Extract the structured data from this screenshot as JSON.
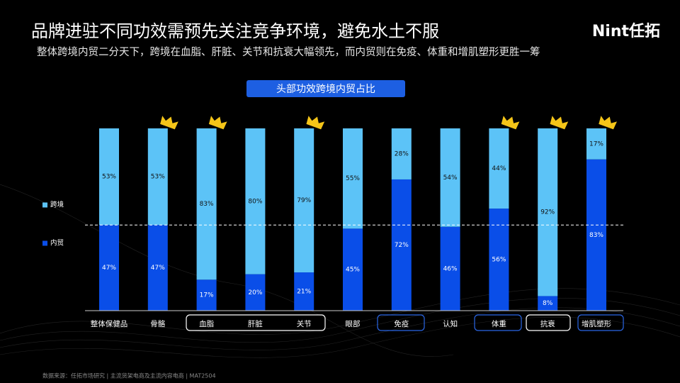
{
  "header": {
    "title": "品牌进驻不同功效需预先关注竞争环境，避免水土不服",
    "subtitle": "整体跨境内贸二分天下，跨境在血脂、肝脏、关节和抗衰大幅领先，而内贸则在免疫、体重和增肌塑形更胜一筹",
    "logo": "Nint任拓"
  },
  "footer": "数据来源：任拓市场研究 | 主流货架电商及主流内容电商 | MAT2504",
  "chart_data": {
    "type": "bar",
    "stacked": true,
    "title": "头部功效跨境内贸占比",
    "categories": [
      "整体保健品",
      "骨骼",
      "血脂",
      "肝脏",
      "关节",
      "眼部",
      "免疫",
      "认知",
      "体重",
      "抗衰",
      "增肌塑形"
    ],
    "series": [
      {
        "name": "内贸",
        "color": "#0a4ee8",
        "values": [
          47,
          47,
          17,
          20,
          21,
          45,
          72,
          46,
          56,
          8,
          83
        ],
        "value_labels": [
          "47%",
          "47%",
          "17%",
          "20%",
          "21%",
          "45%",
          "72%",
          "46%",
          "56%",
          "8%",
          "83%"
        ]
      },
      {
        "name": "跨境",
        "color": "#5cc3f7",
        "values": [
          53,
          53,
          83,
          80,
          79,
          55,
          28,
          54,
          44,
          92,
          17
        ],
        "value_labels": [
          "53%",
          "53%",
          "83%",
          "80%",
          "79%",
          "55%",
          "28%",
          "54%",
          "44%",
          "92%",
          "17%"
        ]
      }
    ],
    "ylim": [
      0,
      100
    ]
  }
}
